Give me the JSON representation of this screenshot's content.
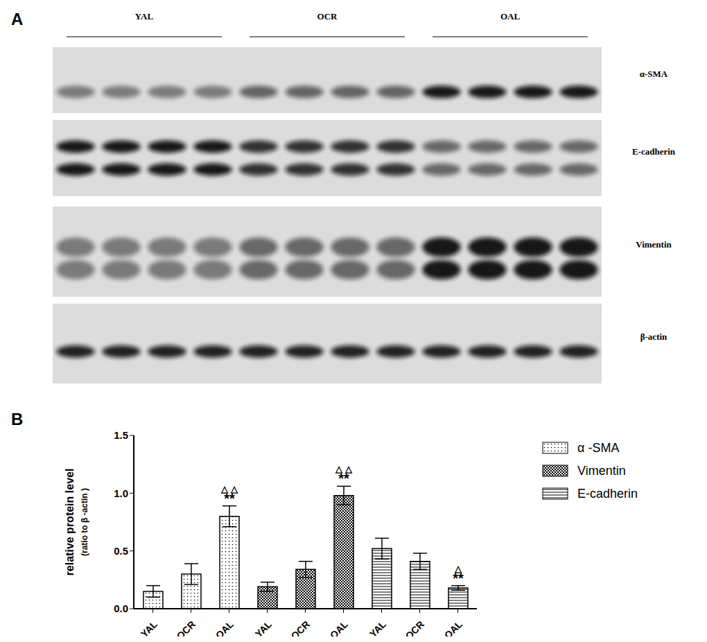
{
  "panel_a": {
    "label": "A",
    "groups": [
      "YAL",
      "OCR",
      "OAL"
    ],
    "proteins": [
      "α-SMA",
      "E-cadherin",
      "Vimentin",
      "β-actin"
    ]
  },
  "chart_data": {
    "panel_label": "B",
    "type": "bar",
    "categories": [
      "YAL",
      "OCR",
      "OAL",
      "YAL",
      "OCR",
      "OAL",
      "YAL",
      "OCR",
      "OAL"
    ],
    "series": [
      {
        "name": "α -SMA",
        "color": "#000000",
        "values": [
          0.15,
          0.3,
          0.8,
          null,
          null,
          null,
          null,
          null,
          null
        ],
        "errors": [
          0.05,
          0.09,
          0.09,
          null,
          null,
          null,
          null,
          null,
          null
        ]
      },
      {
        "name": "Vimentin",
        "color": "#000000",
        "values": [
          null,
          null,
          null,
          0.19,
          0.34,
          0.98,
          null,
          null,
          null
        ],
        "errors": [
          null,
          null,
          null,
          0.04,
          0.07,
          0.08,
          null,
          null,
          null
        ]
      },
      {
        "name": "E-cadherin",
        "color": "#000000",
        "values": [
          null,
          null,
          null,
          null,
          null,
          null,
          0.52,
          0.41,
          0.18
        ],
        "errors": [
          null,
          null,
          null,
          null,
          null,
          null,
          0.09,
          0.07,
          0.02
        ]
      }
    ],
    "annotations": [
      {
        "index": 2,
        "texts": [
          "△ △",
          "**"
        ]
      },
      {
        "index": 5,
        "texts": [
          "△ △",
          "**"
        ]
      },
      {
        "index": 8,
        "texts": [
          "△",
          "**"
        ]
      }
    ],
    "y_label": "relative protein level",
    "y_label_note": "(ratio to β -actin )",
    "ylim": [
      0,
      1.5
    ],
    "yticks": [
      {
        "value": 0,
        "label": "0.0"
      },
      0.5,
      {
        "value": 1,
        "label": "1.0"
      },
      1.5
    ],
    "legend": "right",
    "grid": false
  }
}
